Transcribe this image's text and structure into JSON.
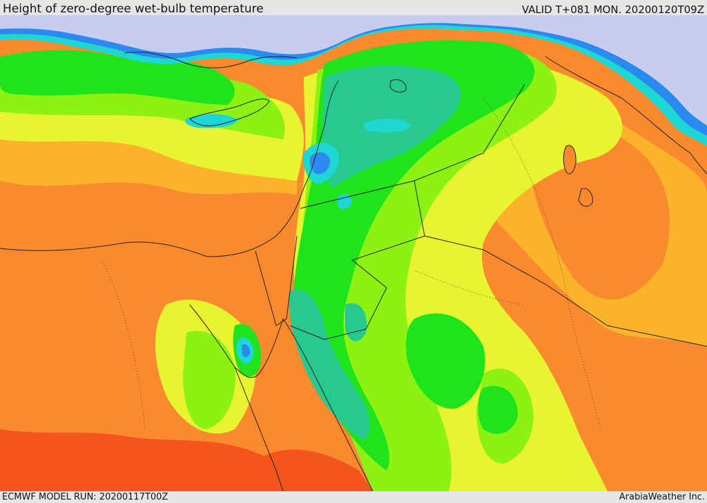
{
  "header": {
    "title": "Height of zero-degree wet-bulb temperature",
    "valid": "VALID T+081 MON. 20200120T09Z"
  },
  "footer": {
    "model_run": "ECMWF MODEL RUN: 20200117T00Z",
    "credit": "ArabiaWeather Inc."
  },
  "colors": {
    "sea": "#c8cdf0",
    "deep_orange": "#f4541e",
    "orange": "#f98a2d",
    "light_orange": "#fbb32b",
    "yellow": "#e8f430",
    "lime": "#8cf213",
    "green": "#1fe41b",
    "teal": "#27c98e",
    "cyan": "#1fd7d2",
    "blue": "#2a8af0",
    "violet": "#7a6ef0",
    "border": "#222222"
  }
}
